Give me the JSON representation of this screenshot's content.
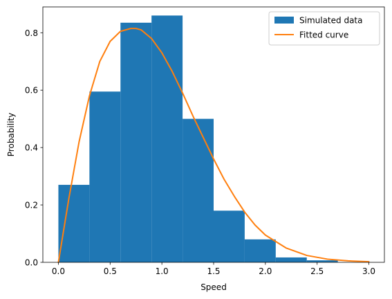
{
  "chart_data": {
    "type": "bar",
    "xlabel": "Speed",
    "ylabel": "Probability",
    "xlim": [
      -0.15,
      3.15
    ],
    "ylim": [
      0,
      0.89
    ],
    "xticks": [
      0.0,
      0.5,
      1.0,
      1.5,
      2.0,
      2.5,
      3.0
    ],
    "xtick_labels": [
      "0.0",
      "0.5",
      "1.0",
      "1.5",
      "2.0",
      "2.5",
      "3.0"
    ],
    "yticks": [
      0.0,
      0.2,
      0.4,
      0.6,
      0.8
    ],
    "ytick_labels": [
      "0.0",
      "0.2",
      "0.4",
      "0.6",
      "0.8"
    ],
    "grid": false,
    "legend": "top-right",
    "series": [
      {
        "name": "Simulated data",
        "kind": "histogram",
        "color": "#1f77b4",
        "bin_edges": [
          0.0,
          0.3,
          0.6,
          0.9,
          1.2,
          1.5,
          1.8,
          2.1,
          2.4,
          2.7
        ],
        "values": [
          0.27,
          0.595,
          0.835,
          0.86,
          0.5,
          0.18,
          0.08,
          0.017,
          0.007
        ]
      },
      {
        "name": "Fitted curve",
        "kind": "line",
        "color": "#ff7f0e",
        "x": [
          0.0,
          0.1,
          0.2,
          0.3,
          0.4,
          0.5,
          0.6,
          0.7,
          0.75,
          0.8,
          0.9,
          1.0,
          1.1,
          1.2,
          1.3,
          1.4,
          1.5,
          1.6,
          1.7,
          1.8,
          1.9,
          2.0,
          2.2,
          2.4,
          2.6,
          2.8,
          3.0
        ],
        "y": [
          0.0,
          0.22,
          0.42,
          0.58,
          0.7,
          0.77,
          0.805,
          0.815,
          0.815,
          0.81,
          0.78,
          0.73,
          0.665,
          0.59,
          0.51,
          0.435,
          0.36,
          0.29,
          0.23,
          0.175,
          0.13,
          0.095,
          0.05,
          0.024,
          0.011,
          0.005,
          0.002
        ]
      }
    ]
  }
}
